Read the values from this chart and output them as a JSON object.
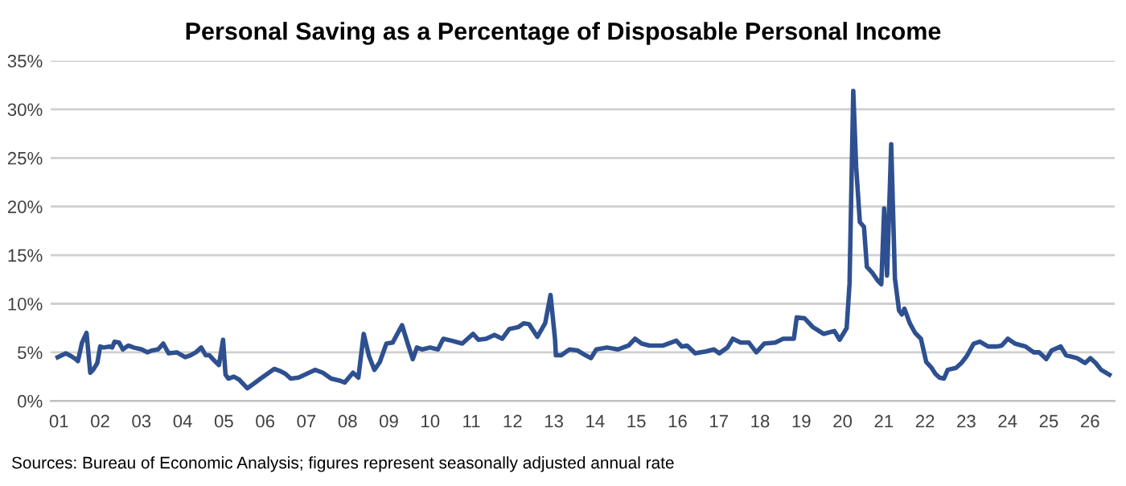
{
  "chart_data": {
    "type": "line",
    "title": "Personal Saving as a Percentage of Disposable Personal Income",
    "x": [
      2000.97,
      2001.17,
      2001.3,
      2001.41,
      2001.46,
      2001.56,
      2001.67,
      2001.76,
      2001.83,
      2001.93,
      2002.0,
      2002.09,
      2002.22,
      2002.29,
      2002.35,
      2002.46,
      2002.55,
      2002.68,
      2002.81,
      2003.01,
      2003.14,
      2003.27,
      2003.4,
      2003.53,
      2003.66,
      2003.86,
      2004.06,
      2004.19,
      2004.32,
      2004.45,
      2004.56,
      2004.65,
      2004.78,
      2004.88,
      2004.98,
      2005.04,
      2005.11,
      2005.24,
      2005.37,
      2005.57,
      2005.7,
      2005.89,
      2006.09,
      2006.22,
      2006.35,
      2006.49,
      2006.62,
      2006.81,
      2007.01,
      2007.21,
      2007.4,
      2007.6,
      2007.8,
      2007.93,
      2008.13,
      2008.26,
      2008.39,
      2008.52,
      2008.65,
      2008.78,
      2008.94,
      2009.09,
      2009.32,
      2009.45,
      2009.58,
      2009.68,
      2009.81,
      2010.0,
      2010.19,
      2010.32,
      2010.52,
      2010.78,
      2011.04,
      2011.17,
      2011.36,
      2011.56,
      2011.75,
      2011.92,
      2012.14,
      2012.27,
      2012.4,
      2012.6,
      2012.79,
      2012.92,
      2013.03,
      2013.05,
      2013.18,
      2013.38,
      2013.57,
      2013.77,
      2013.9,
      2014.03,
      2014.29,
      2014.55,
      2014.81,
      2014.97,
      2015.13,
      2015.32,
      2015.65,
      2015.97,
      2016.1,
      2016.23,
      2016.43,
      2016.69,
      2016.88,
      2017.01,
      2017.21,
      2017.34,
      2017.53,
      2017.73,
      2017.91,
      2018.1,
      2018.37,
      2018.56,
      2018.82,
      2018.89,
      2019.08,
      2019.28,
      2019.54,
      2019.8,
      2019.93,
      2020.1,
      2020.17,
      2020.26,
      2020.33,
      2020.42,
      2020.52,
      2020.59,
      2020.72,
      2020.85,
      2020.94,
      2021.01,
      2021.08,
      2021.18,
      2021.27,
      2021.37,
      2021.44,
      2021.5,
      2021.63,
      2021.76,
      2021.9,
      2022.03,
      2022.16,
      2022.25,
      2022.35,
      2022.46,
      2022.55,
      2022.75,
      2022.88,
      2023.01,
      2023.18,
      2023.33,
      2023.53,
      2023.73,
      2023.86,
      2024.01,
      2024.18,
      2024.44,
      2024.64,
      2024.77,
      2024.94,
      2025.07,
      2025.29,
      2025.42,
      2025.69,
      2025.88,
      2026.01,
      2026.14,
      2026.27,
      2026.47
    ],
    "series": [
      {
        "color": "#2e5090",
        "values": [
          4.5,
          4.9,
          4.6,
          4.3,
          4.1,
          6.0,
          7.0,
          2.9,
          3.2,
          3.9,
          5.6,
          5.5,
          5.6,
          5.5,
          6.1,
          6.0,
          5.3,
          5.7,
          5.5,
          5.3,
          5.0,
          5.2,
          5.3,
          5.9,
          4.9,
          5.0,
          4.5,
          4.7,
          5.0,
          5.5,
          4.7,
          4.7,
          4.1,
          3.7,
          6.3,
          2.7,
          2.3,
          2.5,
          2.2,
          1.3,
          1.7,
          2.3,
          2.9,
          3.3,
          3.1,
          2.8,
          2.3,
          2.4,
          2.8,
          3.2,
          2.9,
          2.3,
          2.1,
          1.9,
          2.9,
          2.4,
          6.9,
          4.6,
          3.2,
          4.0,
          5.9,
          6.0,
          7.8,
          6.0,
          4.3,
          5.5,
          5.3,
          5.5,
          5.3,
          6.4,
          6.2,
          5.9,
          6.9,
          6.3,
          6.4,
          6.8,
          6.4,
          7.4,
          7.6,
          8.0,
          7.9,
          6.6,
          8.0,
          10.9,
          6.3,
          4.7,
          4.7,
          5.3,
          5.2,
          4.7,
          4.4,
          5.3,
          5.5,
          5.3,
          5.7,
          6.4,
          5.9,
          5.7,
          5.7,
          6.2,
          5.6,
          5.7,
          4.9,
          5.1,
          5.3,
          4.9,
          5.5,
          6.4,
          6.0,
          6.0,
          5.0,
          5.9,
          6.0,
          6.4,
          6.4,
          8.6,
          8.5,
          7.6,
          6.9,
          7.2,
          6.3,
          7.5,
          12.1,
          31.9,
          24.1,
          18.4,
          17.9,
          13.8,
          13.2,
          12.4,
          12.0,
          19.8,
          12.9,
          26.4,
          12.6,
          9.3,
          8.9,
          9.5,
          8.0,
          7.0,
          6.4,
          4.0,
          3.4,
          2.8,
          2.4,
          2.3,
          3.2,
          3.4,
          3.9,
          4.6,
          5.9,
          6.1,
          5.6,
          5.6,
          5.7,
          6.4,
          5.9,
          5.6,
          5.0,
          5.0,
          4.3,
          5.2,
          5.6,
          4.7,
          4.4,
          3.9,
          4.4,
          3.9,
          3.2,
          2.7
        ]
      }
    ],
    "xlim": [
      2000.8,
      2026.6
    ],
    "xticks": [
      {
        "value": 2001,
        "label": "01"
      },
      {
        "value": 2002,
        "label": "02"
      },
      {
        "value": 2003,
        "label": "03"
      },
      {
        "value": 2004,
        "label": "04"
      },
      {
        "value": 2005,
        "label": "05"
      },
      {
        "value": 2006,
        "label": "06"
      },
      {
        "value": 2007,
        "label": "07"
      },
      {
        "value": 2008,
        "label": "08"
      },
      {
        "value": 2009,
        "label": "09"
      },
      {
        "value": 2010,
        "label": "10"
      },
      {
        "value": 2011,
        "label": "11"
      },
      {
        "value": 2012,
        "label": "12"
      },
      {
        "value": 2013,
        "label": "13"
      },
      {
        "value": 2014,
        "label": "14"
      },
      {
        "value": 2015,
        "label": "15"
      },
      {
        "value": 2016,
        "label": "16"
      },
      {
        "value": 2017,
        "label": "17"
      },
      {
        "value": 2018,
        "label": "18"
      },
      {
        "value": 2019,
        "label": "19"
      },
      {
        "value": 2020,
        "label": "20"
      },
      {
        "value": 2021,
        "label": "21"
      },
      {
        "value": 2022,
        "label": "22"
      },
      {
        "value": 2023,
        "label": "23"
      },
      {
        "value": 2024,
        "label": "24"
      },
      {
        "value": 2025,
        "label": "25"
      },
      {
        "value": 2026,
        "label": "26"
      }
    ],
    "ylim": [
      0,
      35
    ],
    "yticks": [
      {
        "value": 0,
        "label": "0%"
      },
      {
        "value": 5,
        "label": "5%"
      },
      {
        "value": 10,
        "label": "10%"
      },
      {
        "value": 15,
        "label": "15%"
      },
      {
        "value": 20,
        "label": "20%"
      },
      {
        "value": 25,
        "label": "25%"
      },
      {
        "value": 30,
        "label": "30%"
      },
      {
        "value": 35,
        "label": "35%"
      }
    ],
    "grid": "y",
    "annotations": [
      "Sources: Bureau of Economic Analysis; figures represent seasonally adjusted annual rate"
    ]
  }
}
